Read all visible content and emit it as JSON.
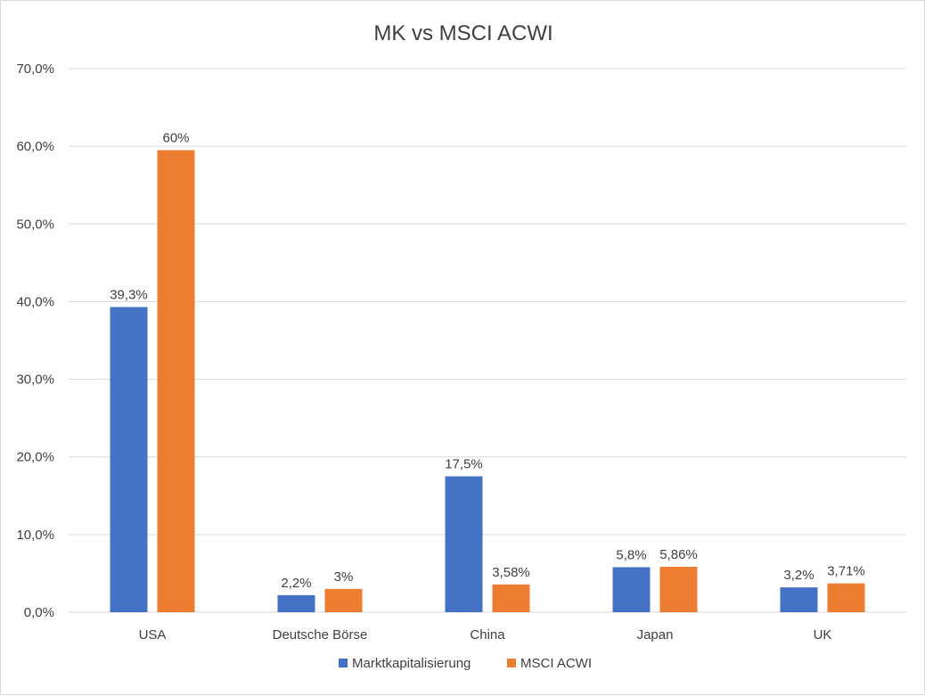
{
  "chart_data": {
    "type": "bar",
    "title": "MK vs MSCI ACWI",
    "categories": [
      "USA",
      "Deutsche Börse",
      "China",
      "Japan",
      "UK"
    ],
    "series": [
      {
        "name": "Marktkapitalisierung",
        "color": "#4472C4",
        "values": [
          39.3,
          2.2,
          17.5,
          5.8,
          3.2
        ],
        "labels": [
          "39,3%",
          "2,2%",
          "17,5%",
          "5,8%",
          "3,2%"
        ]
      },
      {
        "name": "MSCI ACWI",
        "color": "#ED7D31",
        "values": [
          59.5,
          3.0,
          3.58,
          5.86,
          3.71
        ],
        "labels": [
          "60%",
          "3%",
          "3,58%",
          "5,86%",
          "3,71%"
        ]
      }
    ],
    "ylim": [
      0,
      70
    ],
    "yticks": [
      0,
      10,
      20,
      30,
      40,
      50,
      60,
      70
    ],
    "ytick_labels": [
      "0,0%",
      "10,0%",
      "20,0%",
      "30,0%",
      "40,0%",
      "50,0%",
      "60,0%",
      "70,0%"
    ],
    "grid": true,
    "legend_position": "bottom"
  }
}
